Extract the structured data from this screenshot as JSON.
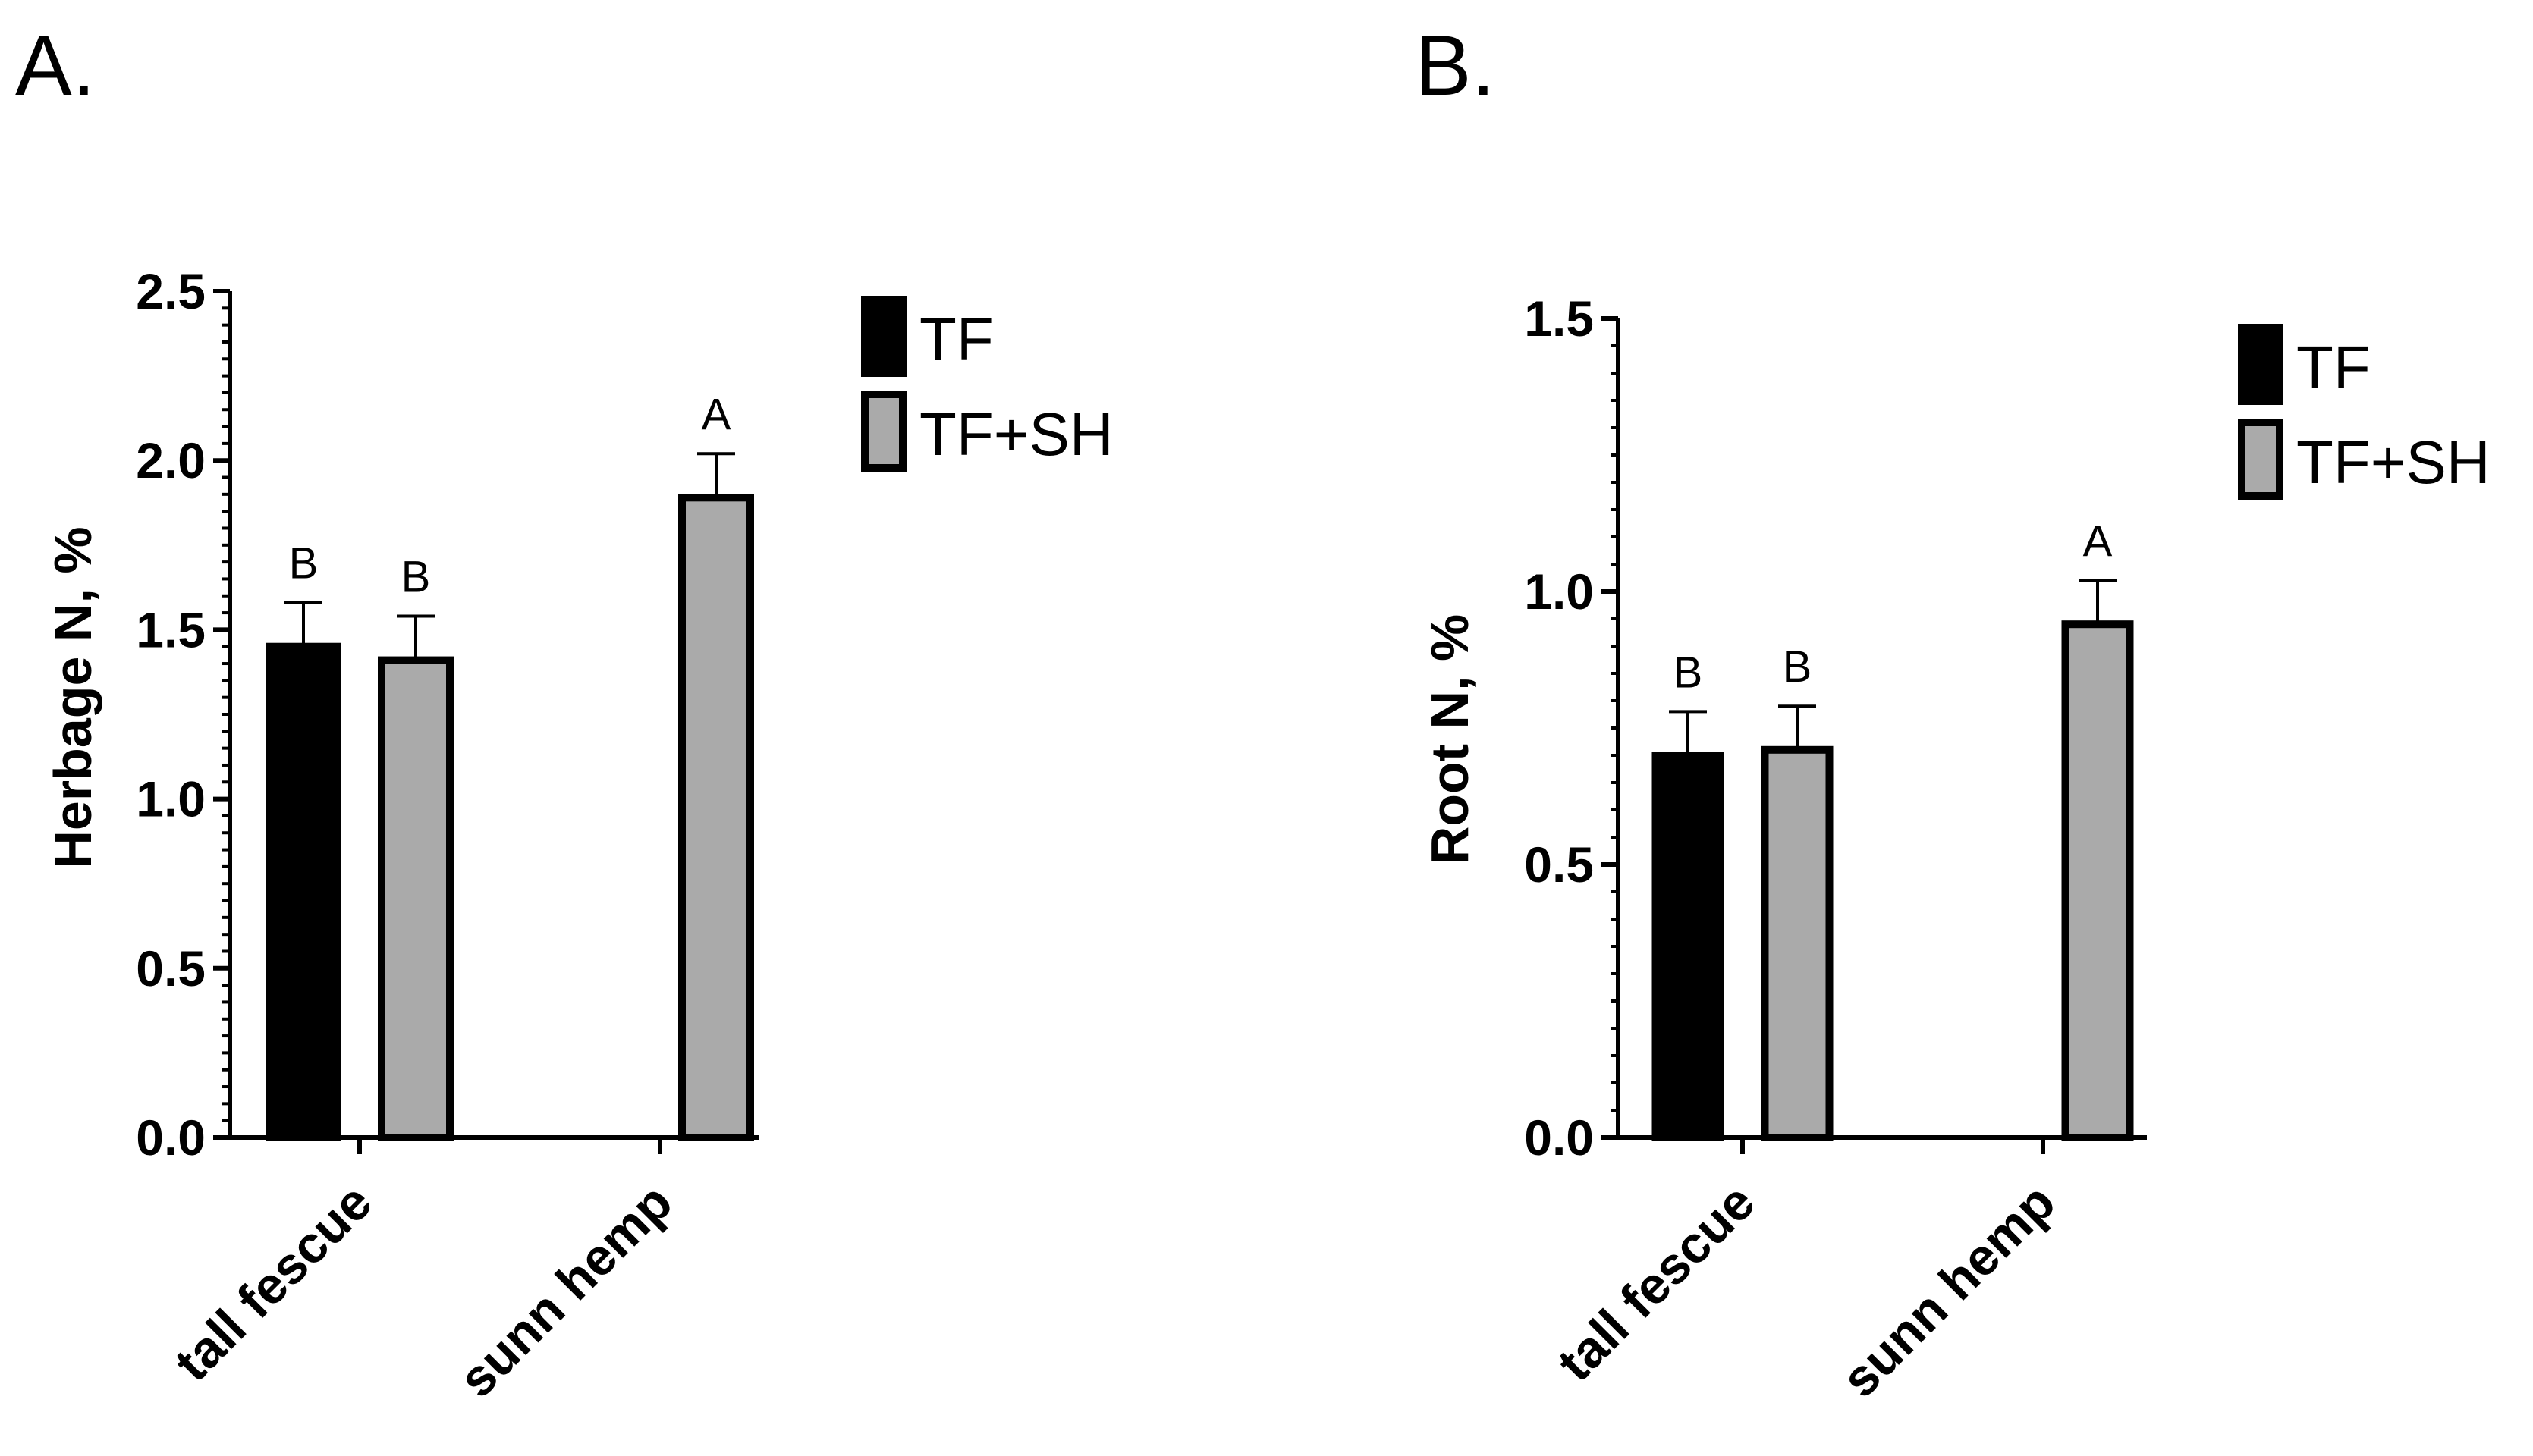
{
  "chart_data": [
    {
      "type": "bar",
      "panel_label": "A.",
      "categories": [
        "tall fescue",
        "sunn hemp"
      ],
      "ylabel": "Herbage N, %",
      "ylim": [
        0,
        2.5
      ],
      "y_ticks": [
        "0.0",
        "0.5",
        "1.0",
        "1.5",
        "2.0",
        "2.5"
      ],
      "legend_position": "top-right",
      "series": [
        {
          "name": "TF",
          "color": "#000000",
          "values": [
            1.45,
            null
          ],
          "errors": [
            0.13,
            null
          ],
          "letters": [
            "B",
            ""
          ]
        },
        {
          "name": "TF+SH",
          "color": "#aaaaaa",
          "values": [
            1.41,
            1.89
          ],
          "errors": [
            0.13,
            0.13
          ],
          "letters": [
            "B",
            "A"
          ]
        }
      ]
    },
    {
      "type": "bar",
      "panel_label": "B.",
      "categories": [
        "tall fescue",
        "sunn hemp"
      ],
      "ylabel": "Root N, %",
      "ylim": [
        0,
        1.5
      ],
      "y_ticks": [
        "0.0",
        "0.5",
        "1.0",
        "1.5"
      ],
      "legend_position": "top-right",
      "series": [
        {
          "name": "TF",
          "color": "#000000",
          "values": [
            0.7,
            null
          ],
          "errors": [
            0.08,
            null
          ],
          "letters": [
            "B",
            ""
          ]
        },
        {
          "name": "TF+SH",
          "color": "#aaaaaa",
          "values": [
            0.71,
            0.94
          ],
          "errors": [
            0.08,
            0.08
          ],
          "letters": [
            "B",
            "A"
          ]
        }
      ]
    }
  ]
}
